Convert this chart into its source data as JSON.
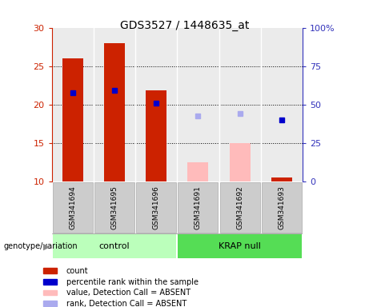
{
  "title": "GDS3527 / 1448635_at",
  "samples": [
    "GSM341694",
    "GSM341695",
    "GSM341696",
    "GSM341691",
    "GSM341692",
    "GSM341693"
  ],
  "bar_bottom": 10,
  "count_values": [
    26.0,
    28.0,
    21.8,
    null,
    null,
    10.5
  ],
  "absent_count_values": [
    null,
    null,
    null,
    12.5,
    15.0,
    null
  ],
  "percentile_present": [
    21.5,
    21.8,
    20.2,
    null,
    null,
    18.0
  ],
  "percentile_absent": [
    null,
    null,
    null,
    18.5,
    18.8,
    null
  ],
  "count_color": "#cc2200",
  "absent_color": "#ffbbbb",
  "percentile_color": "#0000cc",
  "percentile_absent_color": "#aaaaee",
  "ylim_left": [
    10,
    30
  ],
  "ylim_right": [
    0,
    100
  ],
  "yticks_left": [
    10,
    15,
    20,
    25,
    30
  ],
  "yticks_right": [
    0,
    25,
    50,
    75,
    100
  ],
  "ytick_labels_right": [
    "0",
    "25",
    "50",
    "75",
    "100%"
  ],
  "left_axis_color": "#cc2200",
  "right_axis_color": "#3333bb",
  "grid_yticks": [
    15,
    20,
    25
  ],
  "bar_width": 0.5,
  "marker_size": 5,
  "bg_plot": "#ebebeb",
  "bg_label": "#cccccc",
  "group_colors": {
    "control": "#bbffbb",
    "KRAP null": "#55dd55"
  },
  "group_label": "genotype/variation",
  "legend_items": [
    {
      "label": "count",
      "color": "#cc2200"
    },
    {
      "label": "percentile rank within the sample",
      "color": "#0000cc"
    },
    {
      "label": "value, Detection Call = ABSENT",
      "color": "#ffbbbb"
    },
    {
      "label": "rank, Detection Call = ABSENT",
      "color": "#aaaaee"
    }
  ]
}
